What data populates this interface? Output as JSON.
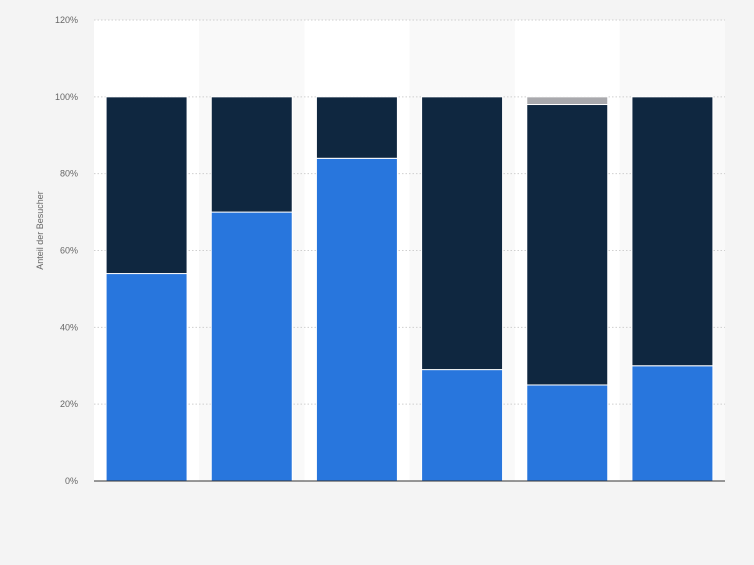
{
  "chart_data": {
    "type": "bar",
    "stacked": true,
    "categories": [
      "",
      "",
      "",
      "",
      "",
      ""
    ],
    "series": [
      {
        "values": [
          54,
          70,
          84,
          29,
          25,
          30
        ],
        "color": "#2876dd"
      },
      {
        "values": [
          46,
          30,
          16,
          71,
          73,
          70
        ],
        "color": "#0f2740"
      },
      {
        "values": [
          0,
          0,
          0,
          0,
          2,
          0
        ],
        "color": "#a9a9ad"
      }
    ],
    "ylabel": "Anteil der Besucher",
    "ylim": [
      0,
      120
    ],
    "yticks": [
      0,
      20,
      40,
      60,
      80,
      100,
      120
    ],
    "ytick_labels": [
      "0%",
      "20%",
      "40%",
      "60%",
      "80%",
      "100%",
      "120%"
    ],
    "grid": true,
    "legend": "none"
  }
}
